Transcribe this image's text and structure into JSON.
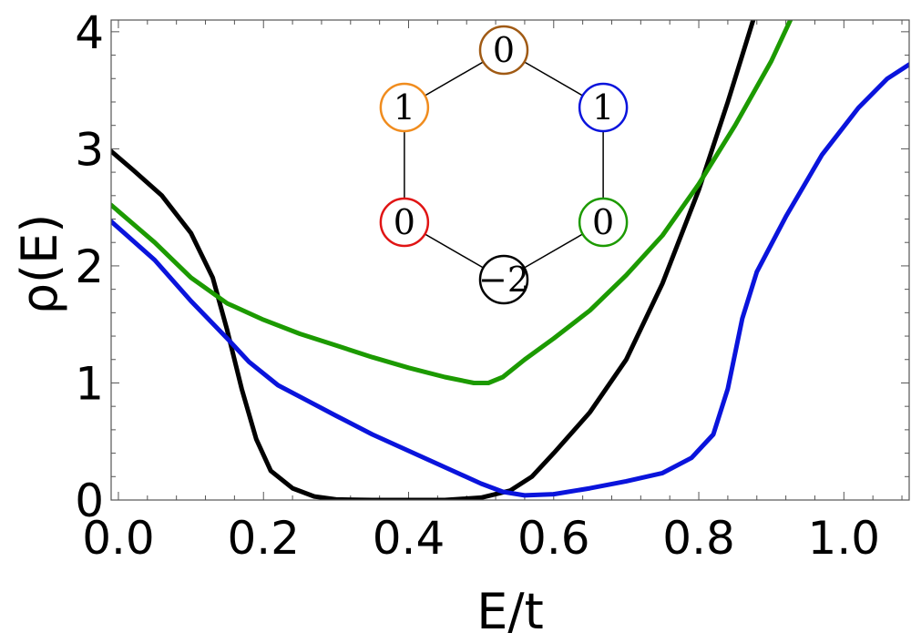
{
  "chart_data": {
    "type": "line",
    "title": "",
    "xlabel": "E/t",
    "ylabel": "ρ(E)",
    "xlim": [
      -0.01,
      1.09
    ],
    "ylim": [
      0,
      4.1
    ],
    "xticks": [
      0.0,
      0.2,
      0.4,
      0.6,
      0.8,
      1.0
    ],
    "xtick_labels": [
      "0.0",
      "0.2",
      "0.4",
      "0.6",
      "0.8",
      "1.0"
    ],
    "yticks": [
      0,
      1,
      2,
      3,
      4
    ],
    "ytick_labels": [
      "0",
      "1",
      "2",
      "3",
      "4"
    ],
    "grid": false,
    "legend": "none",
    "series": [
      {
        "color": "#000000",
        "points": [
          [
            -0.01,
            2.98
          ],
          [
            0.02,
            2.82
          ],
          [
            0.06,
            2.6
          ],
          [
            0.1,
            2.28
          ],
          [
            0.13,
            1.9
          ],
          [
            0.15,
            1.45
          ],
          [
            0.17,
            0.95
          ],
          [
            0.19,
            0.52
          ],
          [
            0.21,
            0.25
          ],
          [
            0.24,
            0.1
          ],
          [
            0.27,
            0.03
          ],
          [
            0.3,
            0.005
          ],
          [
            0.35,
            0.0
          ],
          [
            0.4,
            0.0
          ],
          [
            0.45,
            0.0
          ],
          [
            0.5,
            0.02
          ],
          [
            0.54,
            0.08
          ],
          [
            0.57,
            0.2
          ],
          [
            0.6,
            0.4
          ],
          [
            0.65,
            0.75
          ],
          [
            0.7,
            1.2
          ],
          [
            0.75,
            1.85
          ],
          [
            0.8,
            2.65
          ],
          [
            0.84,
            3.4
          ],
          [
            0.87,
            4.0
          ],
          [
            0.885,
            4.3
          ]
        ]
      },
      {
        "color": "#1c9a00",
        "points": [
          [
            -0.01,
            2.52
          ],
          [
            0.05,
            2.2
          ],
          [
            0.1,
            1.9
          ],
          [
            0.15,
            1.68
          ],
          [
            0.2,
            1.54
          ],
          [
            0.25,
            1.42
          ],
          [
            0.3,
            1.32
          ],
          [
            0.35,
            1.22
          ],
          [
            0.4,
            1.13
          ],
          [
            0.45,
            1.05
          ],
          [
            0.49,
            1.0
          ],
          [
            0.51,
            1.0
          ],
          [
            0.53,
            1.05
          ],
          [
            0.56,
            1.2
          ],
          [
            0.6,
            1.38
          ],
          [
            0.65,
            1.62
          ],
          [
            0.7,
            1.92
          ],
          [
            0.75,
            2.26
          ],
          [
            0.8,
            2.7
          ],
          [
            0.85,
            3.2
          ],
          [
            0.9,
            3.75
          ],
          [
            0.93,
            4.15
          ]
        ]
      },
      {
        "color": "#0a14dc",
        "points": [
          [
            -0.01,
            2.38
          ],
          [
            0.05,
            2.05
          ],
          [
            0.1,
            1.7
          ],
          [
            0.15,
            1.38
          ],
          [
            0.18,
            1.18
          ],
          [
            0.22,
            0.98
          ],
          [
            0.26,
            0.85
          ],
          [
            0.3,
            0.72
          ],
          [
            0.35,
            0.56
          ],
          [
            0.4,
            0.42
          ],
          [
            0.45,
            0.28
          ],
          [
            0.5,
            0.14
          ],
          [
            0.53,
            0.07
          ],
          [
            0.56,
            0.04
          ],
          [
            0.6,
            0.05
          ],
          [
            0.65,
            0.1
          ],
          [
            0.7,
            0.16
          ],
          [
            0.75,
            0.23
          ],
          [
            0.79,
            0.36
          ],
          [
            0.82,
            0.56
          ],
          [
            0.84,
            0.95
          ],
          [
            0.86,
            1.55
          ],
          [
            0.88,
            1.95
          ],
          [
            0.92,
            2.42
          ],
          [
            0.97,
            2.95
          ],
          [
            1.02,
            3.35
          ],
          [
            1.06,
            3.6
          ],
          [
            1.09,
            3.72
          ]
        ]
      }
    ],
    "inset": {
      "type": "hexagon",
      "nodes": [
        {
          "label": "0",
          "color": "#a05a14"
        },
        {
          "label": "1",
          "color": "#0a14dc"
        },
        {
          "label": "0",
          "color": "#1c9a00"
        },
        {
          "label": "−2",
          "color": "#000000"
        },
        {
          "label": "0",
          "color": "#e01414"
        },
        {
          "label": "1",
          "color": "#f08c1e"
        }
      ]
    }
  }
}
